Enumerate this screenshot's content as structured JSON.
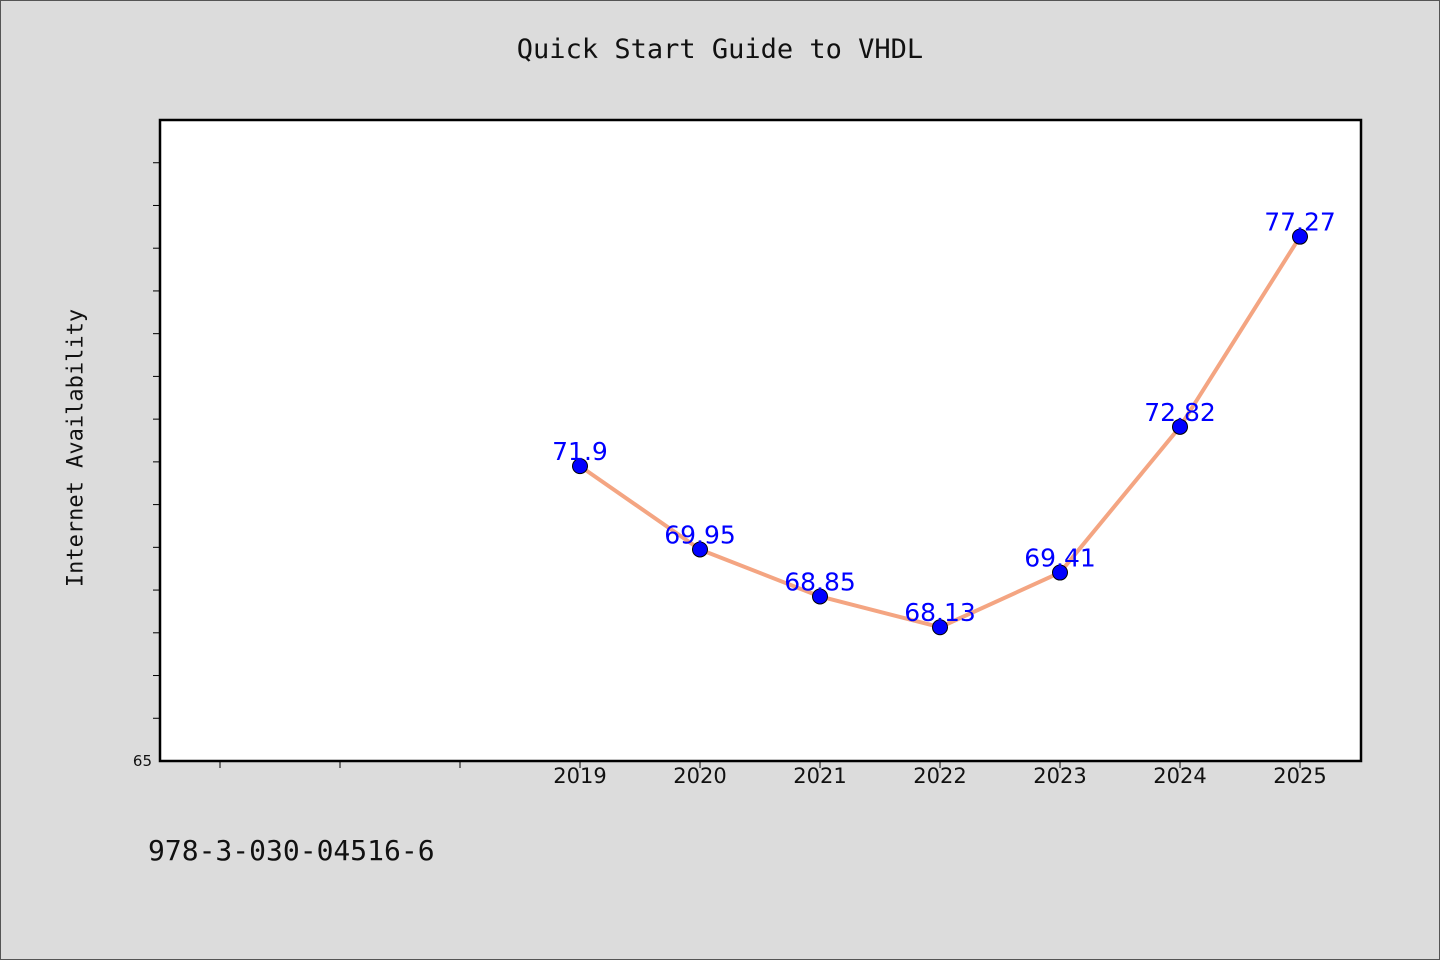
{
  "chart_data": {
    "type": "line",
    "title": "Quick Start Guide to VHDL",
    "ylabel": "Internet Availability",
    "xlabel": "",
    "x": [
      "2019",
      "2020",
      "2021",
      "2022",
      "2023",
      "2024",
      "2025"
    ],
    "series": [
      {
        "values": [
          71.9,
          69.95,
          68.85,
          68.13,
          69.41,
          72.82,
          77.27
        ],
        "labels": [
          "71.9",
          "69.95",
          "68.85",
          "68.13",
          "69.41",
          "72.82",
          "77.27"
        ]
      }
    ],
    "ylim": [
      65,
      80
    ],
    "ytick_labels": [
      "65"
    ],
    "grid": false,
    "line_color": "#f4a582",
    "marker_color": "#0000ff",
    "label_color": "#0000ff",
    "background_color": "#dcdcdc",
    "plot_background": "#ffffff"
  },
  "footer": {
    "isbn": "978-3-030-04516-6"
  }
}
